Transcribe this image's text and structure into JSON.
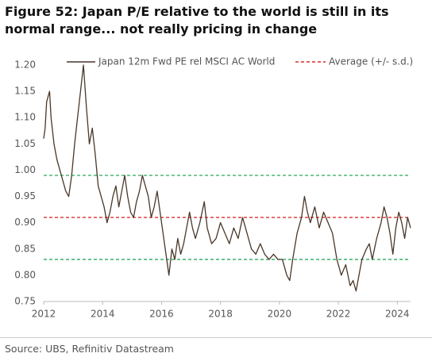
{
  "chart_data": {
    "type": "line",
    "title": "Figure 52: Japan P/E relative to the world is still in its normal range... not really pricing in change",
    "source": "Source: UBS, Refinitiv Datastream",
    "x": [
      2012.0,
      2012.05,
      2012.1,
      2012.2,
      2012.25,
      2012.35,
      2012.45,
      2012.55,
      2012.65,
      2012.75,
      2012.85,
      2012.95,
      2013.05,
      2013.15,
      2013.25,
      2013.35,
      2013.45,
      2013.55,
      2013.65,
      2013.75,
      2013.85,
      2013.95,
      2014.05,
      2014.15,
      2014.25,
      2014.35,
      2014.45,
      2014.55,
      2014.65,
      2014.75,
      2014.85,
      2014.95,
      2015.05,
      2015.15,
      2015.25,
      2015.35,
      2015.45,
      2015.55,
      2015.65,
      2015.75,
      2015.85,
      2015.95,
      2016.05,
      2016.15,
      2016.25,
      2016.35,
      2016.45,
      2016.55,
      2016.65,
      2016.75,
      2016.85,
      2016.95,
      2017.05,
      2017.15,
      2017.3,
      2017.45,
      2017.55,
      2017.7,
      2017.85,
      2018.0,
      2018.15,
      2018.3,
      2018.45,
      2018.6,
      2018.75,
      2018.9,
      2019.05,
      2019.2,
      2019.35,
      2019.5,
      2019.65,
      2019.8,
      2019.95,
      2020.1,
      2020.25,
      2020.35,
      2020.45,
      2020.6,
      2020.75,
      2020.85,
      2020.95,
      2021.05,
      2021.2,
      2021.35,
      2021.5,
      2021.65,
      2021.8,
      2021.95,
      2022.1,
      2022.25,
      2022.4,
      2022.5,
      2022.6,
      2022.7,
      2022.8,
      2022.95,
      2023.05,
      2023.15,
      2023.3,
      2023.45,
      2023.55,
      2023.65,
      2023.75,
      2023.85,
      2023.95,
      2024.05,
      2024.15,
      2024.25,
      2024.35,
      2024.45
    ],
    "series": [
      {
        "name": "Japan 12m Fwd PE rel MSCI AC World",
        "color": "#4a3728",
        "values": [
          1.06,
          1.08,
          1.13,
          1.15,
          1.1,
          1.05,
          1.02,
          1.0,
          0.98,
          0.96,
          0.95,
          0.99,
          1.05,
          1.1,
          1.15,
          1.2,
          1.12,
          1.05,
          1.08,
          1.03,
          0.97,
          0.95,
          0.93,
          0.9,
          0.92,
          0.95,
          0.97,
          0.93,
          0.96,
          0.99,
          0.95,
          0.92,
          0.91,
          0.94,
          0.96,
          0.99,
          0.97,
          0.95,
          0.91,
          0.93,
          0.96,
          0.92,
          0.88,
          0.84,
          0.8,
          0.85,
          0.83,
          0.87,
          0.84,
          0.86,
          0.89,
          0.92,
          0.89,
          0.87,
          0.9,
          0.94,
          0.89,
          0.86,
          0.87,
          0.9,
          0.88,
          0.86,
          0.89,
          0.87,
          0.91,
          0.88,
          0.85,
          0.84,
          0.86,
          0.84,
          0.83,
          0.84,
          0.83,
          0.83,
          0.8,
          0.79,
          0.83,
          0.88,
          0.91,
          0.95,
          0.92,
          0.9,
          0.93,
          0.89,
          0.92,
          0.9,
          0.88,
          0.83,
          0.8,
          0.82,
          0.78,
          0.79,
          0.77,
          0.8,
          0.83,
          0.85,
          0.86,
          0.83,
          0.87,
          0.9,
          0.93,
          0.91,
          0.88,
          0.84,
          0.89,
          0.92,
          0.9,
          0.87,
          0.91,
          0.89
        ]
      }
    ],
    "reference": {
      "name": "Average (+/- s.d.)",
      "mean": 0.91,
      "mean_color": "#d00000",
      "band": [
        0.83,
        0.99
      ],
      "band_color": "#12a04a"
    },
    "xlim": [
      2012,
      2024.45
    ],
    "xticks": [
      2012,
      2014,
      2016,
      2018,
      2020,
      2022,
      2024
    ],
    "ylim": [
      0.75,
      1.2
    ],
    "yticks": [
      0.75,
      {
        "value": 0.8,
        "label": "0.80"
      },
      0.85,
      {
        "value": 0.9,
        "label": "0.90"
      },
      0.95,
      {
        "value": 1.0,
        "label": "1.00"
      },
      1.05,
      {
        "value": 1.1,
        "label": "1.10"
      },
      1.15,
      {
        "value": 1.2,
        "label": "1.20"
      }
    ]
  }
}
